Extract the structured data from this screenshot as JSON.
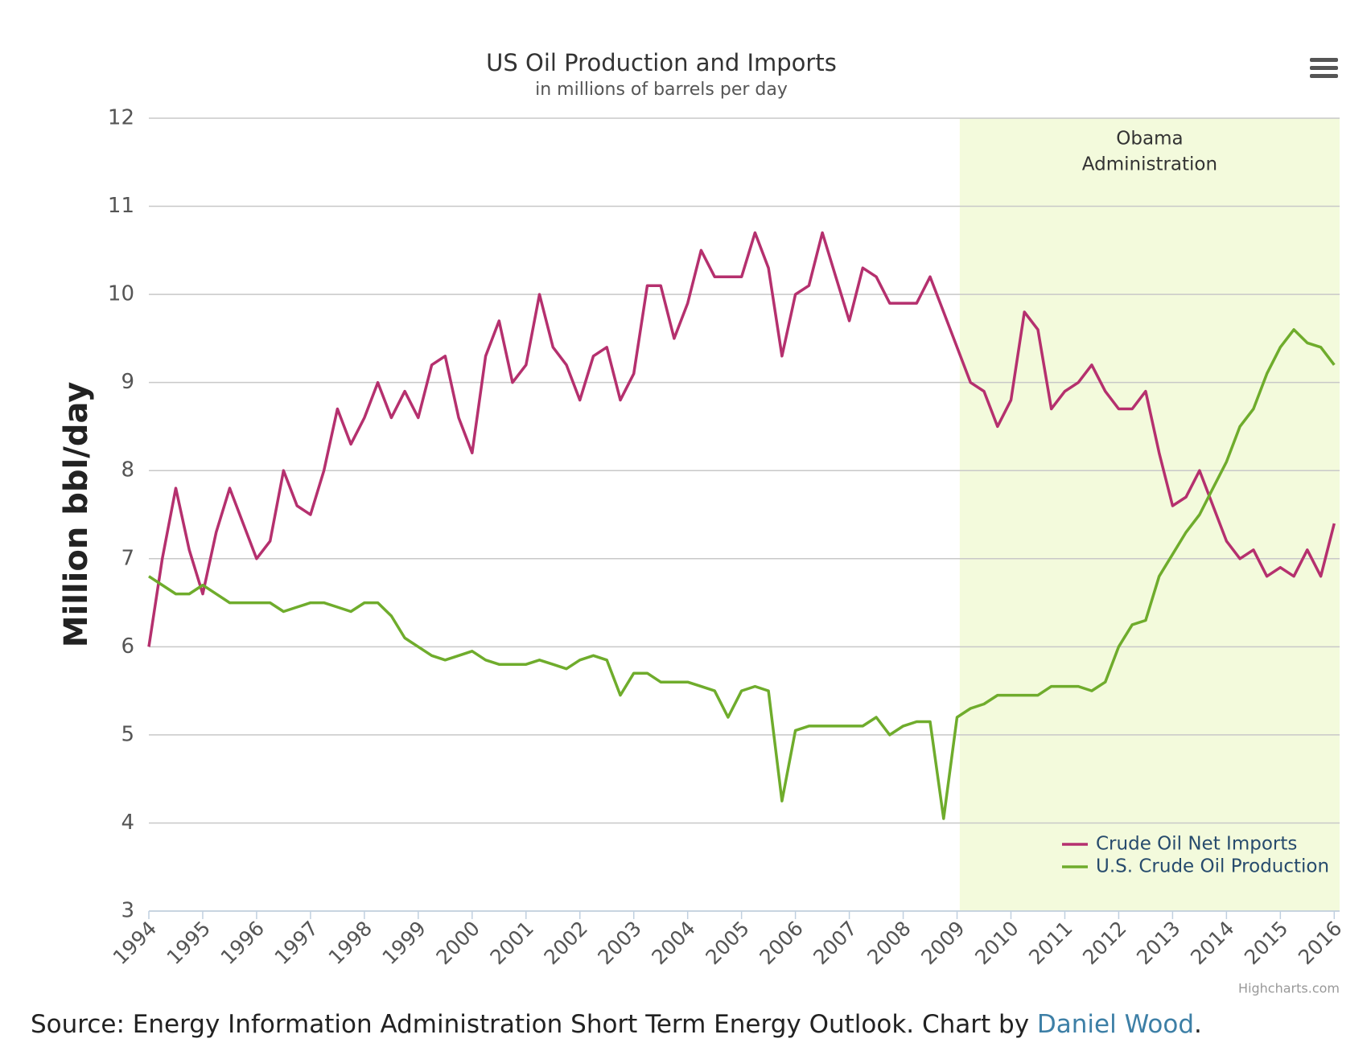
{
  "chart_data": {
    "type": "line",
    "title": "US Oil Production and Imports",
    "subtitle": "in millions of barrels per day",
    "y_axis_label": "Million bbl/day",
    "plot_band": {
      "from": 2009.05,
      "to": 2016.1,
      "color": "#f3fadc",
      "label": [
        "Obama",
        "Administration"
      ]
    },
    "x": [
      1994,
      1994.25,
      1994.5,
      1994.75,
      1995,
      1995.25,
      1995.5,
      1995.75,
      1996,
      1996.25,
      1996.5,
      1996.75,
      1997,
      1997.25,
      1997.5,
      1997.75,
      1998,
      1998.25,
      1998.5,
      1998.75,
      1999,
      1999.25,
      1999.5,
      1999.75,
      2000,
      2000.25,
      2000.5,
      2000.75,
      2001,
      2001.25,
      2001.5,
      2001.75,
      2002,
      2002.25,
      2002.5,
      2002.75,
      2003,
      2003.25,
      2003.5,
      2003.75,
      2004,
      2004.25,
      2004.5,
      2004.75,
      2005,
      2005.25,
      2005.5,
      2005.75,
      2006,
      2006.25,
      2006.5,
      2006.75,
      2007,
      2007.25,
      2007.5,
      2007.75,
      2008,
      2008.25,
      2008.5,
      2008.75,
      2009,
      2009.25,
      2009.5,
      2009.75,
      2010,
      2010.25,
      2010.5,
      2010.75,
      2011,
      2011.25,
      2011.5,
      2011.75,
      2012,
      2012.25,
      2012.5,
      2012.75,
      2013,
      2013.25,
      2013.5,
      2013.75,
      2014,
      2014.25,
      2014.5,
      2014.75,
      2015,
      2015.25,
      2015.5,
      2015.75,
      2016
    ],
    "series": [
      {
        "name": "Crude Oil Net Imports",
        "color": "#b5306e",
        "values": [
          6.0,
          7.0,
          7.8,
          7.1,
          6.6,
          7.3,
          7.8,
          7.4,
          7.0,
          7.2,
          8.0,
          7.6,
          7.5,
          8.0,
          8.7,
          8.3,
          8.6,
          9.0,
          8.6,
          8.9,
          8.6,
          9.2,
          9.3,
          8.6,
          8.2,
          9.3,
          9.7,
          9.0,
          9.2,
          10.0,
          9.4,
          9.2,
          8.8,
          9.3,
          9.4,
          8.8,
          9.1,
          10.1,
          10.1,
          9.5,
          9.9,
          10.5,
          10.2,
          10.2,
          10.2,
          10.7,
          10.3,
          9.3,
          10.0,
          10.1,
          10.7,
          10.2,
          9.7,
          10.3,
          10.2,
          9.9,
          9.9,
          9.9,
          10.2,
          9.8,
          9.4,
          9.0,
          8.9,
          8.5,
          8.8,
          9.8,
          9.6,
          8.7,
          8.9,
          9.0,
          9.2,
          8.9,
          8.7,
          8.7,
          8.9,
          8.2,
          7.6,
          7.7,
          8.0,
          7.6,
          7.2,
          7.0,
          7.1,
          6.8,
          6.9,
          6.8,
          7.1,
          6.8,
          7.4
        ]
      },
      {
        "name": "U.S. Crude Oil Production",
        "color": "#6fac2c",
        "values": [
          6.8,
          6.7,
          6.6,
          6.6,
          6.7,
          6.6,
          6.5,
          6.5,
          6.5,
          6.5,
          6.4,
          6.45,
          6.5,
          6.5,
          6.45,
          6.4,
          6.5,
          6.5,
          6.35,
          6.1,
          6.0,
          5.9,
          5.85,
          5.9,
          5.95,
          5.85,
          5.8,
          5.8,
          5.8,
          5.85,
          5.8,
          5.75,
          5.85,
          5.9,
          5.85,
          5.45,
          5.7,
          5.7,
          5.6,
          5.6,
          5.6,
          5.55,
          5.5,
          5.2,
          5.5,
          5.55,
          5.5,
          4.25,
          5.05,
          5.1,
          5.1,
          5.1,
          5.1,
          5.1,
          5.2,
          5.0,
          5.1,
          5.15,
          5.15,
          4.05,
          5.2,
          5.3,
          5.35,
          5.45,
          5.45,
          5.45,
          5.45,
          5.55,
          5.55,
          5.55,
          5.5,
          5.6,
          6.0,
          6.25,
          6.3,
          6.8,
          7.05,
          7.3,
          7.5,
          7.8,
          8.1,
          8.5,
          8.7,
          9.1,
          9.4,
          9.6,
          9.45,
          9.4,
          9.2
        ]
      }
    ],
    "xlim": [
      1994,
      2016.1
    ],
    "xticks": [
      1994,
      1995,
      1996,
      1997,
      1998,
      1999,
      2000,
      2001,
      2002,
      2003,
      2004,
      2005,
      2006,
      2007,
      2008,
      2009,
      2010,
      2011,
      2012,
      2013,
      2014,
      2015,
      2016
    ],
    "ylim": [
      3,
      12
    ],
    "yticks": [
      3,
      4,
      5,
      6,
      7,
      8,
      9,
      10,
      11,
      12
    ],
    "grid": true,
    "legend": "bottom-right",
    "credits": "Highcharts.com",
    "source": {
      "text": "Source: Energy Information Administration Short Term Energy Outlook. Chart by ",
      "link": "Daniel Wood",
      "end": "."
    }
  }
}
